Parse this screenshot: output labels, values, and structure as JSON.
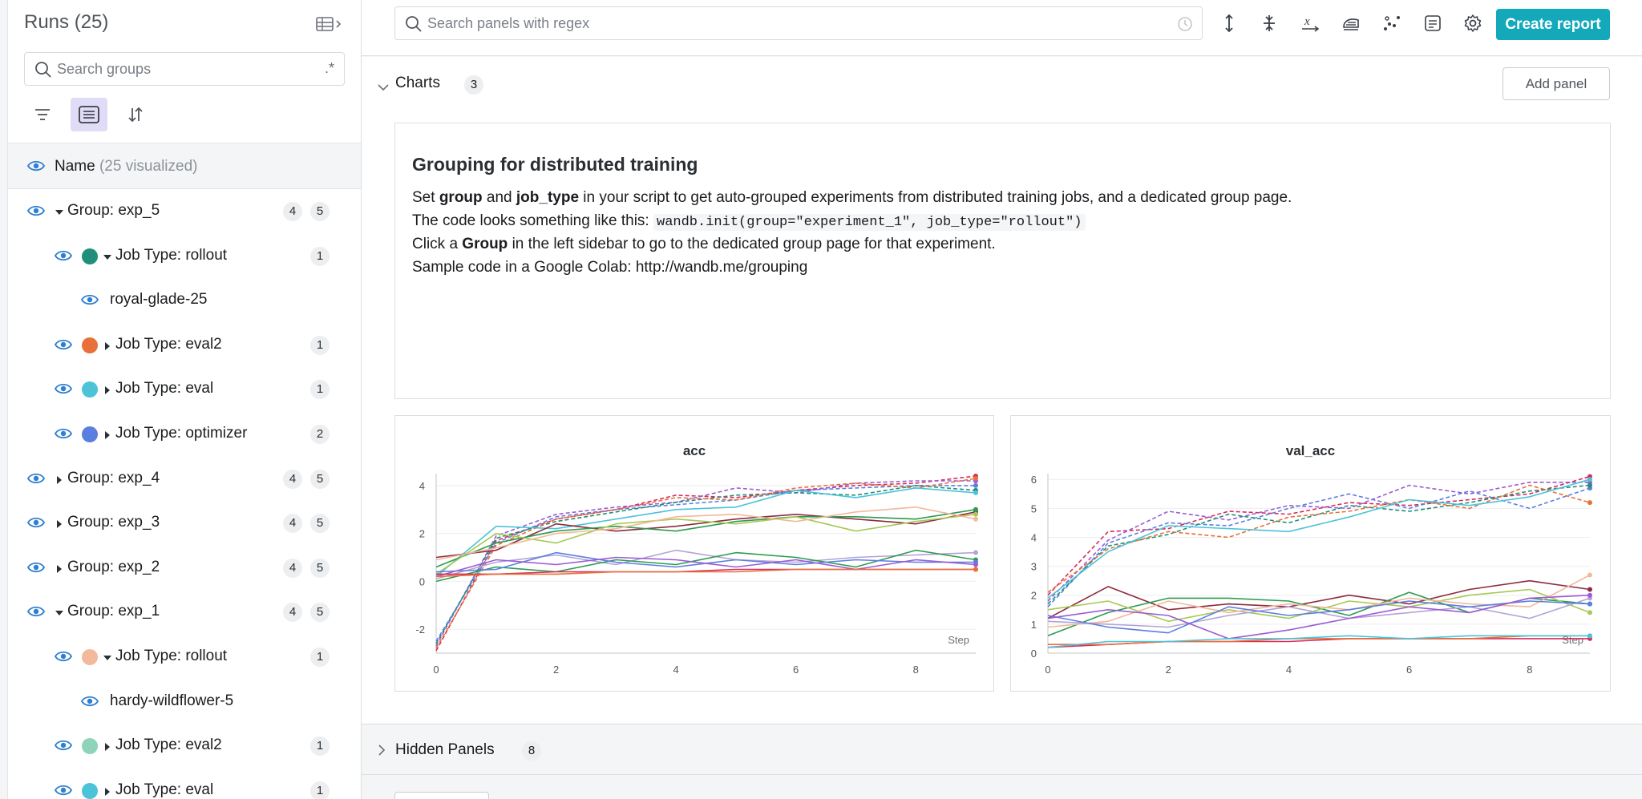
{
  "sidebar": {
    "title": "Runs (25)",
    "search_placeholder": "Search groups",
    "regex_toggle": ".*",
    "name_header": "Name",
    "name_count": "(25 visualized)",
    "rows": [
      {
        "kind": "group",
        "label": "Group: exp_5",
        "expanded": true,
        "badges": [
          "4",
          "5"
        ]
      },
      {
        "kind": "jobtype",
        "label": "Job Type: rollout",
        "expanded": true,
        "color": "#1f8f7a",
        "badges": [
          "1"
        ]
      },
      {
        "kind": "run",
        "label": "royal-glade-25"
      },
      {
        "kind": "jobtype",
        "label": "Job Type: eval2",
        "expanded": false,
        "color": "#e8703a",
        "badges": [
          "1"
        ]
      },
      {
        "kind": "jobtype",
        "label": "Job Type: eval",
        "expanded": false,
        "color": "#4cc3d9",
        "badges": [
          "1"
        ]
      },
      {
        "kind": "jobtype",
        "label": "Job Type: optimizer",
        "expanded": false,
        "color": "#5b7fe0",
        "badges": [
          "2"
        ]
      },
      {
        "kind": "group",
        "label": "Group: exp_4",
        "expanded": false,
        "badges": [
          "4",
          "5"
        ]
      },
      {
        "kind": "group",
        "label": "Group: exp_3",
        "expanded": false,
        "badges": [
          "4",
          "5"
        ]
      },
      {
        "kind": "group",
        "label": "Group: exp_2",
        "expanded": false,
        "badges": [
          "4",
          "5"
        ]
      },
      {
        "kind": "group",
        "label": "Group: exp_1",
        "expanded": true,
        "badges": [
          "4",
          "5"
        ]
      },
      {
        "kind": "jobtype",
        "label": "Job Type: rollout",
        "expanded": true,
        "color": "#f2b99a",
        "badges": [
          "1"
        ]
      },
      {
        "kind": "run",
        "label": "hardy-wildflower-5"
      },
      {
        "kind": "jobtype",
        "label": "Job Type: eval2",
        "expanded": false,
        "color": "#8fd3bb",
        "badges": [
          "1"
        ]
      },
      {
        "kind": "jobtype",
        "label": "Job Type: eval",
        "expanded": false,
        "color": "#4cc3d9",
        "badges": [
          "1"
        ]
      }
    ]
  },
  "topbar": {
    "search_placeholder": "Search panels with regex",
    "create_report": "Create report"
  },
  "charts_section": {
    "title": "Charts",
    "count": "3",
    "add_panel": "Add panel"
  },
  "markdown_panel": {
    "title": "Grouping for distributed training",
    "line1_pre": "Set ",
    "line1_b1": "group",
    "line1_mid": " and ",
    "line1_b2": "job_type",
    "line1_post": " in your script to get auto-grouped experiments from distributed training jobs, and a dedicated group page.",
    "line2_pre": "The code looks something like this: ",
    "line2_code": "wandb.init(group=\"experiment_1\", job_type=\"rollout\")",
    "line3_pre": "Click a ",
    "line3_b": "Group",
    "line3_post": " in the left sidebar to go to the dedicated group page for that experiment.",
    "line4": "Sample code in a Google Colab: http://wandb.me/grouping"
  },
  "hidden_section": {
    "title": "Hidden Panels",
    "count": "8"
  },
  "colors": {
    "accent": "#13a9ba",
    "eye": "#2f7fd1",
    "active_tool": "#e0dcf8"
  },
  "chart_data": [
    {
      "type": "line",
      "title": "acc",
      "xlabel": "Step",
      "xlim": [
        0,
        9
      ],
      "ylim": [
        -3,
        4.5
      ],
      "x_ticks": [
        0,
        2,
        4,
        6,
        8
      ],
      "y_ticks": [
        -2,
        0,
        2,
        4
      ],
      "grid": true,
      "legend": "none",
      "x": [
        0,
        1,
        2,
        3,
        4,
        5,
        6,
        7,
        8,
        9
      ],
      "series": [
        {
          "color": "#d62d5b",
          "dashed": true,
          "values": [
            -2.9,
            1.7,
            2.6,
            3.0,
            3.6,
            3.5,
            3.8,
            4.0,
            4.1,
            4.4
          ]
        },
        {
          "color": "#9c5bd4",
          "dashed": true,
          "values": [
            -2.7,
            1.9,
            2.8,
            3.1,
            3.3,
            3.9,
            3.7,
            4.1,
            4.2,
            4.2
          ]
        },
        {
          "color": "#5b7fe0",
          "dashed": true,
          "values": [
            -2.5,
            1.6,
            2.7,
            3.0,
            3.2,
            3.4,
            3.8,
            3.9,
            4.0,
            4.0
          ]
        },
        {
          "color": "#1f8f7a",
          "dashed": true,
          "values": [
            -2.6,
            1.8,
            2.5,
            2.9,
            3.3,
            3.6,
            3.7,
            3.6,
            4.0,
            3.8
          ]
        },
        {
          "color": "#e8703a",
          "dashed": true,
          "values": [
            -2.8,
            1.5,
            2.6,
            3.0,
            3.5,
            3.4,
            3.9,
            4.1,
            3.9,
            4.3
          ]
        },
        {
          "color": "#4cc3d9",
          "dashed": false,
          "values": [
            0.2,
            2.3,
            2.2,
            2.6,
            3.0,
            3.1,
            3.8,
            3.5,
            3.9,
            3.7
          ]
        },
        {
          "color": "#8e2a3e",
          "dashed": false,
          "values": [
            1.0,
            1.3,
            2.4,
            2.1,
            2.3,
            2.6,
            2.8,
            2.6,
            2.4,
            2.9
          ]
        },
        {
          "color": "#2d9b4f",
          "dashed": false,
          "values": [
            0.6,
            1.6,
            2.1,
            2.3,
            2.1,
            2.5,
            2.7,
            2.7,
            2.6,
            3.0
          ]
        },
        {
          "color": "#a7c957",
          "dashed": false,
          "values": [
            0.3,
            2.0,
            1.6,
            2.4,
            2.6,
            2.4,
            2.7,
            2.1,
            2.5,
            2.8
          ]
        },
        {
          "color": "#f2b99a",
          "dashed": false,
          "values": [
            0.9,
            1.4,
            2.0,
            2.2,
            2.7,
            2.8,
            2.5,
            2.9,
            3.1,
            2.6
          ]
        },
        {
          "color": "#b4a2d8",
          "dashed": false,
          "values": [
            0.1,
            0.8,
            1.1,
            0.7,
            1.3,
            0.9,
            0.8,
            1.0,
            1.1,
            1.2
          ]
        },
        {
          "color": "#2d9b4f",
          "dashed": false,
          "values": [
            0.0,
            0.6,
            0.4,
            0.9,
            0.7,
            1.2,
            1.0,
            0.6,
            1.3,
            0.9
          ]
        },
        {
          "color": "#5b7fe0",
          "dashed": false,
          "values": [
            0.4,
            0.5,
            1.2,
            0.8,
            0.6,
            0.9,
            0.7,
            0.9,
            0.8,
            0.8
          ]
        },
        {
          "color": "#9c5bd4",
          "dashed": false,
          "values": [
            0.2,
            0.9,
            0.7,
            1.0,
            0.9,
            0.6,
            0.9,
            0.5,
            0.9,
            0.7
          ]
        },
        {
          "color": "#d62d5b",
          "dashed": false,
          "values": [
            0.3,
            0.3,
            0.4,
            0.4,
            0.4,
            0.5,
            0.5,
            0.5,
            0.5,
            0.5
          ]
        },
        {
          "color": "#e8703a",
          "dashed": false,
          "values": [
            0.2,
            0.3,
            0.3,
            0.4,
            0.4,
            0.4,
            0.5,
            0.5,
            0.5,
            0.5
          ]
        }
      ]
    },
    {
      "type": "line",
      "title": "val_acc",
      "xlabel": "Step",
      "xlim": [
        0,
        9
      ],
      "ylim": [
        0,
        6.2
      ],
      "x_ticks": [
        0,
        2,
        4,
        6,
        8
      ],
      "y_ticks": [
        0,
        1,
        2,
        3,
        4,
        5,
        6
      ],
      "grid": true,
      "legend": "none",
      "x": [
        0,
        1,
        2,
        3,
        4,
        5,
        6,
        7,
        8,
        9
      ],
      "series": [
        {
          "color": "#d62d5b",
          "dashed": true,
          "values": [
            2.0,
            4.2,
            4.3,
            4.9,
            4.8,
            5.2,
            5.1,
            5.3,
            5.5,
            6.1
          ]
        },
        {
          "color": "#9c5bd4",
          "dashed": true,
          "values": [
            1.8,
            3.9,
            4.9,
            4.6,
            5.1,
            5.0,
            5.8,
            5.5,
            5.9,
            5.9
          ]
        },
        {
          "color": "#5b7fe0",
          "dashed": true,
          "values": [
            1.6,
            3.8,
            4.5,
            4.4,
            5.0,
            5.5,
            5.0,
            5.6,
            5.0,
            5.7
          ]
        },
        {
          "color": "#1f8f7a",
          "dashed": true,
          "values": [
            1.7,
            3.7,
            4.1,
            4.8,
            4.5,
            5.1,
            4.9,
            5.2,
            5.6,
            5.8
          ]
        },
        {
          "color": "#e8703a",
          "dashed": true,
          "values": [
            2.1,
            3.6,
            4.2,
            4.0,
            4.7,
            4.9,
            5.3,
            5.0,
            5.8,
            5.2
          ]
        },
        {
          "color": "#4cc3d9",
          "dashed": false,
          "values": [
            1.9,
            3.5,
            4.4,
            4.3,
            4.2,
            4.7,
            5.3,
            5.1,
            5.4,
            6.0
          ]
        },
        {
          "color": "#8e2a3e",
          "dashed": false,
          "values": [
            1.2,
            2.3,
            1.5,
            1.7,
            1.6,
            2.0,
            1.7,
            2.2,
            2.5,
            2.2
          ]
        },
        {
          "color": "#2d9b4f",
          "dashed": false,
          "values": [
            0.6,
            1.4,
            1.9,
            1.9,
            1.8,
            1.3,
            2.1,
            1.4,
            1.9,
            1.7
          ]
        },
        {
          "color": "#a7c957",
          "dashed": false,
          "values": [
            1.5,
            1.8,
            1.1,
            1.5,
            1.2,
            1.8,
            1.6,
            2.0,
            2.2,
            1.4
          ]
        },
        {
          "color": "#f2b99a",
          "dashed": false,
          "values": [
            0.9,
            1.1,
            1.8,
            1.4,
            1.7,
            1.5,
            1.9,
            1.7,
            1.6,
            2.7
          ]
        },
        {
          "color": "#b4a2d8",
          "dashed": false,
          "values": [
            1.1,
            1.0,
            0.9,
            1.3,
            1.6,
            1.2,
            1.4,
            1.6,
            1.2,
            1.9
          ]
        },
        {
          "color": "#5b7fe0",
          "dashed": false,
          "values": [
            1.3,
            0.9,
            0.7,
            1.6,
            1.3,
            1.5,
            1.8,
            1.6,
            1.8,
            1.7
          ]
        },
        {
          "color": "#9c5bd4",
          "dashed": false,
          "values": [
            1.2,
            1.5,
            1.3,
            0.5,
            0.8,
            1.2,
            1.6,
            1.4,
            1.9,
            2.0
          ]
        },
        {
          "color": "#d62d5b",
          "dashed": false,
          "values": [
            0.2,
            0.3,
            0.4,
            0.4,
            0.4,
            0.5,
            0.5,
            0.5,
            0.5,
            0.5
          ]
        },
        {
          "color": "#e8703a",
          "dashed": false,
          "values": [
            0.3,
            0.3,
            0.4,
            0.4,
            0.5,
            0.5,
            0.5,
            0.5,
            0.6,
            0.6
          ]
        },
        {
          "color": "#4cc3d9",
          "dashed": false,
          "values": [
            0.2,
            0.4,
            0.4,
            0.5,
            0.5,
            0.6,
            0.5,
            0.6,
            0.6,
            0.6
          ]
        }
      ]
    }
  ]
}
